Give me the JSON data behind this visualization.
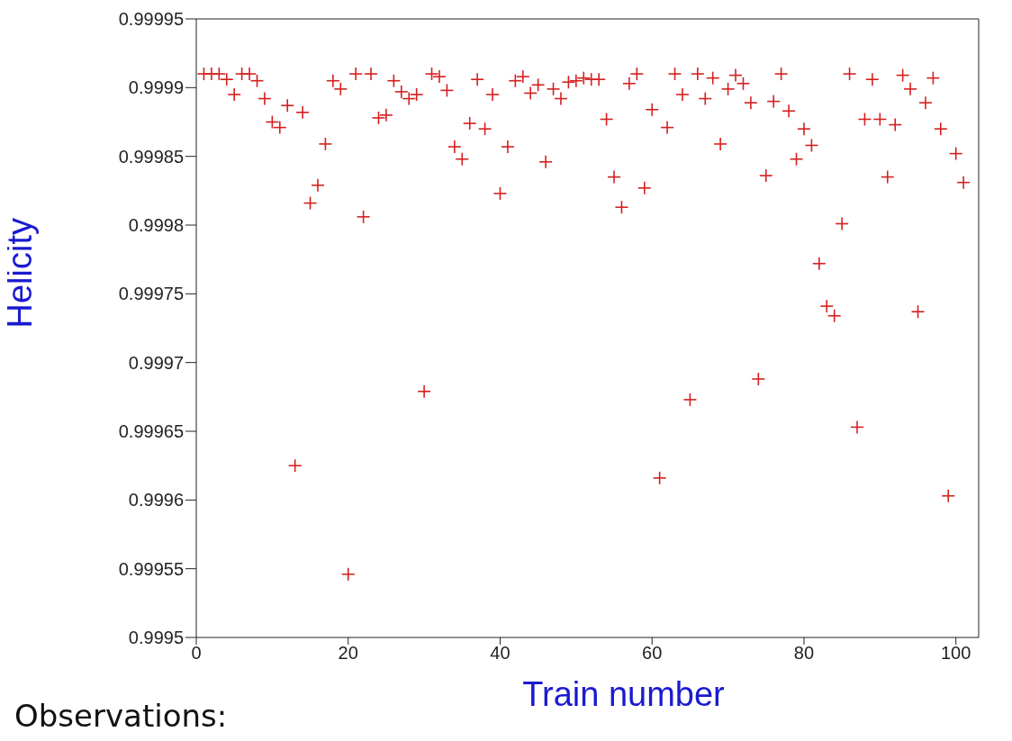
{
  "chart_data": {
    "type": "scatter",
    "xlabel": "Train number",
    "ylabel": "Helicity",
    "annotations": [
      "Observations:"
    ],
    "x": [
      1,
      2,
      3,
      4,
      5,
      6,
      7,
      8,
      9,
      10,
      11,
      12,
      13,
      14,
      15,
      16,
      17,
      18,
      19,
      20,
      21,
      22,
      23,
      24,
      25,
      26,
      27,
      28,
      29,
      30,
      31,
      32,
      33,
      34,
      35,
      36,
      37,
      38,
      39,
      40,
      41,
      42,
      43,
      44,
      45,
      46,
      47,
      48,
      49,
      50,
      51,
      52,
      53,
      54,
      55,
      56,
      57,
      58,
      59,
      60,
      61,
      62,
      63,
      64,
      65,
      66,
      67,
      68,
      69,
      70,
      71,
      72,
      73,
      74,
      75,
      76,
      77,
      78,
      79,
      80,
      81,
      82,
      83,
      84,
      85,
      86,
      87,
      88,
      89,
      90,
      91,
      92,
      93,
      94,
      95,
      96,
      97,
      98,
      99,
      100,
      101
    ],
    "series": [
      {
        "color": "#d42020",
        "values": [
          0.99991,
          0.99991,
          0.99991,
          0.999906,
          0.999895,
          0.99991,
          0.99991,
          0.999905,
          0.999892,
          0.999875,
          0.999871,
          0.999887,
          0.999625,
          0.999882,
          0.999816,
          0.999829,
          0.999859,
          0.999905,
          0.999899,
          0.999546,
          0.99991,
          0.999806,
          0.99991,
          0.999878,
          0.99988,
          0.999905,
          0.999897,
          0.999892,
          0.999895,
          0.999679,
          0.99991,
          0.999908,
          0.999898,
          0.999857,
          0.999848,
          0.999874,
          0.999906,
          0.99987,
          0.999895,
          0.999823,
          0.999857,
          0.999905,
          0.999908,
          0.999896,
          0.999902,
          0.999846,
          0.999899,
          0.999892,
          0.999904,
          0.999905,
          0.999907,
          0.999906,
          0.999906,
          0.999877,
          0.999835,
          0.999813,
          0.999903,
          0.99991,
          0.999827,
          0.999884,
          0.999616,
          0.999871,
          0.99991,
          0.999895,
          0.999673,
          0.99991,
          0.999892,
          0.999907,
          0.999859,
          0.999899,
          0.999909,
          0.999903,
          0.999889,
          0.999688,
          0.999836,
          0.99989,
          0.99991,
          0.999883,
          0.999848,
          0.99987,
          0.999858,
          0.999772,
          0.999741,
          0.999734,
          0.999801,
          0.99991,
          0.999653,
          0.999877,
          0.999906,
          0.999877,
          0.999835,
          0.999873,
          0.999909,
          0.999899,
          0.999737,
          0.999889,
          0.999907,
          0.99987,
          0.999603,
          0.999852,
          0.999831
        ]
      }
    ],
    "xlim": [
      0,
      103
    ],
    "xticks": [
      0,
      20,
      40,
      60,
      80,
      100
    ],
    "ylim": [
      0.9995,
      0.99995
    ],
    "yticks": [
      0.9995,
      0.99955,
      0.9996,
      0.99965,
      0.9997,
      0.99975,
      0.9998,
      0.99985,
      0.9999,
      0.99995
    ],
    "grid": false,
    "legend": false,
    "marker": "cross"
  }
}
